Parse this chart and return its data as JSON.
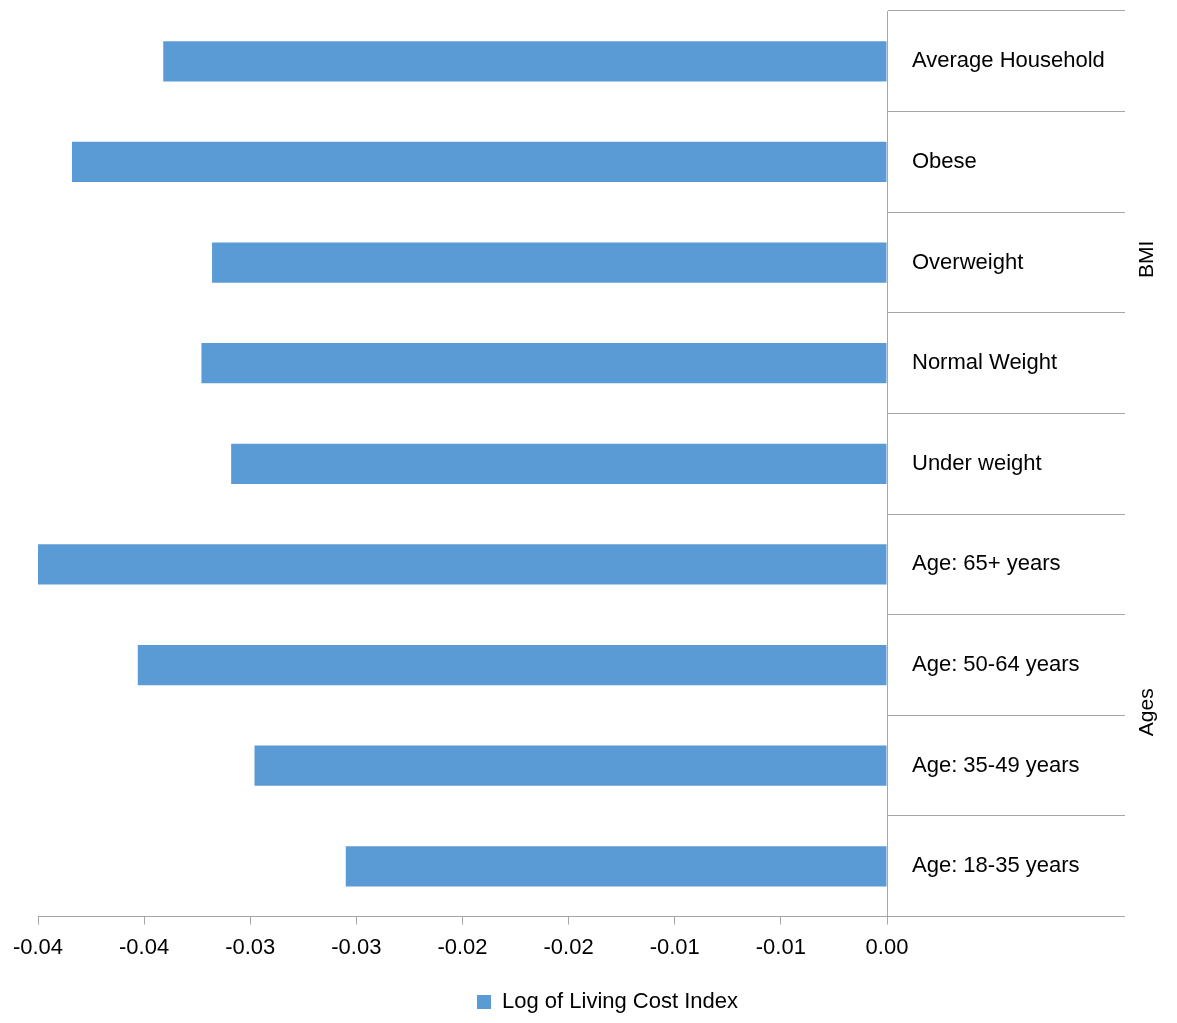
{
  "chart_data": {
    "type": "bar",
    "orientation": "horizontal",
    "categories": [
      "Average Household",
      "Obese",
      "Overweight",
      "Normal Weight",
      "Under weight",
      "Age: 65+ years",
      "Age: 50-64 years",
      "Age: 35-49 years",
      "Age: 18-35 years"
    ],
    "series": [
      {
        "name": "Log of Living Cost Index",
        "color": "#5b9bd5",
        "values": [
          -0.0341,
          -0.0384,
          -0.0318,
          -0.0323,
          -0.0309,
          -0.04,
          -0.0353,
          -0.0298,
          -0.0255
        ]
      }
    ],
    "xlim": [
      -0.04,
      0
    ],
    "xticks": [
      -0.04,
      {
        "value": -0.035,
        "label": "-0.04"
      },
      -0.03,
      {
        "value": -0.025,
        "label": "-0.03"
      },
      -0.02,
      {
        "value": -0.015,
        "label": "-0.02"
      },
      -0.01,
      {
        "value": -0.005,
        "label": "-0.01"
      },
      {
        "value": 0,
        "label": "0.00"
      }
    ],
    "annotations": [
      "BMI",
      "Ages"
    ],
    "grid": false,
    "legend": "bottom"
  }
}
